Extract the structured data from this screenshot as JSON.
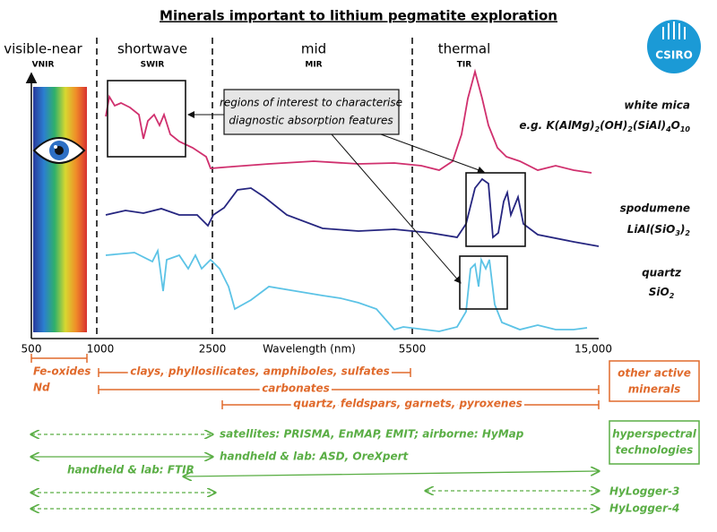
{
  "title": "Minerals important to lithium pegmatite exploration",
  "logo": "CSIRO",
  "regions": [
    {
      "name": "visible-near",
      "abbr": "VNIR"
    },
    {
      "name": "shortwave",
      "abbr": "SWIR"
    },
    {
      "name": "mid",
      "abbr": "MIR"
    },
    {
      "name": "thermal",
      "abbr": "TIR"
    }
  ],
  "callout": [
    "regions of interest to characterise",
    "diagnostic absorption features"
  ],
  "minerals": [
    {
      "name": "white mica",
      "formula": "e.g. K(AlMg)2(OH)2(SiAl)4O10"
    },
    {
      "name": "spodumene",
      "formula": "LiAl(SiO3)2"
    },
    {
      "name": "quartz",
      "formula": "SiO2"
    }
  ],
  "axis": {
    "label": "Wavelength (nm)",
    "ticks": [
      "500",
      "1000",
      "2500",
      "5500",
      "15,000"
    ]
  },
  "active_minerals": {
    "ranges": [
      [
        "Fe-oxides",
        "Nd"
      ],
      "clays, phyllosilicates, amphiboles, sulfates",
      "carbonates",
      "quartz, feldspars, garnets, pyroxenes"
    ],
    "box": [
      "other active",
      "minerals"
    ]
  },
  "technologies": {
    "ranges": [
      "satellites: PRISMA, EnMAP, EMIT; airborne: HyMap",
      "handheld & lab: ASD, OreXpert",
      "handheld & lab: FTIR",
      "HyLogger-3",
      "HyLogger-4"
    ],
    "box": [
      "hyperspectral",
      "technologies"
    ]
  }
}
